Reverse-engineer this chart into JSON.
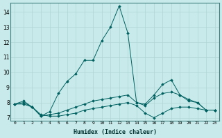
{
  "xlabel": "Humidex (Indice chaleur)",
  "bg_color": "#c8eaea",
  "grid_color": "#b0d4d4",
  "line_color": "#006060",
  "xlim": [
    -0.5,
    23.5
  ],
  "ylim": [
    6.8,
    14.6
  ],
  "yticks": [
    7,
    8,
    9,
    10,
    11,
    12,
    13,
    14
  ],
  "xticks": [
    0,
    1,
    2,
    3,
    4,
    5,
    6,
    7,
    8,
    9,
    10,
    11,
    12,
    13,
    14,
    15,
    16,
    17,
    18,
    19,
    20,
    21,
    22,
    23
  ],
  "series": [
    {
      "x": [
        0,
        1,
        2,
        3,
        4,
        5,
        6,
        7,
        8,
        9,
        10,
        11,
        12,
        13,
        14,
        15,
        16,
        17,
        18,
        19,
        20,
        21,
        22,
        23
      ],
      "y": [
        7.9,
        8.1,
        7.7,
        7.1,
        7.4,
        8.6,
        9.4,
        9.9,
        10.8,
        10.8,
        12.1,
        13.0,
        14.4,
        12.6,
        8.0,
        7.9,
        8.5,
        9.2,
        9.5,
        8.5,
        8.1,
        8.0,
        7.5,
        7.5
      ]
    },
    {
      "x": [
        0,
        1,
        2,
        3,
        4,
        5,
        6,
        7,
        8,
        9,
        10,
        11,
        12,
        13,
        14,
        15,
        16,
        17,
        18,
        19,
        20,
        21,
        22,
        23
      ],
      "y": [
        7.9,
        8.0,
        7.7,
        7.1,
        7.2,
        7.3,
        7.5,
        7.7,
        7.9,
        8.1,
        8.2,
        8.3,
        8.4,
        8.5,
        8.0,
        7.8,
        8.3,
        8.6,
        8.7,
        8.5,
        8.2,
        8.0,
        7.5,
        7.5
      ]
    },
    {
      "x": [
        0,
        1,
        2,
        3,
        4,
        5,
        6,
        7,
        8,
        9,
        10,
        11,
        12,
        13,
        14,
        15,
        16,
        17,
        18,
        19,
        20,
        21,
        22,
        23
      ],
      "y": [
        7.9,
        7.9,
        7.7,
        7.2,
        7.1,
        7.1,
        7.2,
        7.3,
        7.5,
        7.6,
        7.7,
        7.8,
        7.9,
        8.0,
        7.8,
        7.3,
        7.0,
        7.3,
        7.6,
        7.7,
        7.7,
        7.6,
        7.5,
        7.5
      ]
    }
  ]
}
